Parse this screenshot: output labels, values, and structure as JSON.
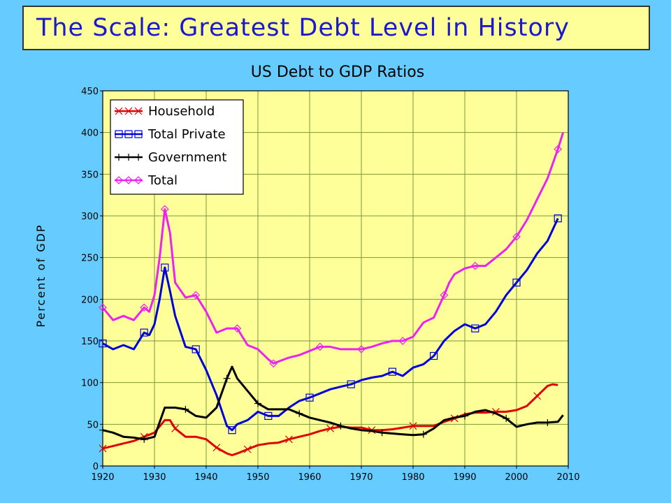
{
  "slide": {
    "title": "The Scale: Greatest Debt Level in History"
  },
  "chart_data": {
    "type": "line",
    "title": "US Debt to GDP Ratios",
    "xlabel": "",
    "ylabel": "Percent of GDP",
    "xlim": [
      1920,
      2010
    ],
    "ylim": [
      0,
      450
    ],
    "xticks": [
      1920,
      1930,
      1940,
      1950,
      1960,
      1970,
      1980,
      1990,
      2000,
      2010
    ],
    "yticks": [
      0,
      50,
      100,
      150,
      200,
      250,
      300,
      350,
      400,
      450
    ],
    "grid": true,
    "legend_position": "top-left",
    "background": "#ffff99",
    "series": [
      {
        "name": "Household",
        "color": "#e00000",
        "marker": "x",
        "x": [
          1920,
          1922,
          1924,
          1926,
          1928,
          1930,
          1932,
          1933,
          1934,
          1936,
          1938,
          1940,
          1942,
          1944,
          1945,
          1946,
          1948,
          1950,
          1952,
          1954,
          1956,
          1958,
          1960,
          1962,
          1964,
          1966,
          1968,
          1970,
          1972,
          1974,
          1976,
          1978,
          1980,
          1982,
          1984,
          1986,
          1988,
          1990,
          1992,
          1994,
          1996,
          1998,
          2000,
          2002,
          2004,
          2006,
          2007,
          2008
        ],
        "values": [
          21,
          24,
          27,
          30,
          35,
          40,
          55,
          55,
          45,
          35,
          35,
          32,
          22,
          15,
          13,
          15,
          20,
          25,
          27,
          28,
          32,
          35,
          38,
          42,
          45,
          47,
          46,
          46,
          43,
          43,
          44,
          46,
          48,
          48,
          48,
          53,
          57,
          62,
          64,
          64,
          65,
          65,
          67,
          72,
          84,
          96,
          98,
          97
        ]
      },
      {
        "name": "Total Private",
        "color": "#0000dd",
        "marker": "square",
        "x": [
          1920,
          1922,
          1924,
          1926,
          1928,
          1929,
          1930,
          1931,
          1932,
          1933,
          1934,
          1936,
          1938,
          1940,
          1942,
          1944,
          1945,
          1946,
          1948,
          1950,
          1952,
          1954,
          1956,
          1958,
          1960,
          1962,
          1964,
          1966,
          1968,
          1970,
          1972,
          1974,
          1976,
          1978,
          1980,
          1982,
          1984,
          1986,
          1988,
          1990,
          1992,
          1994,
          1996,
          1998,
          2000,
          2002,
          2004,
          2006,
          2008
        ],
        "values": [
          147,
          140,
          145,
          140,
          160,
          157,
          170,
          200,
          238,
          210,
          180,
          143,
          140,
          115,
          85,
          48,
          43,
          50,
          55,
          65,
          60,
          60,
          70,
          78,
          82,
          87,
          92,
          95,
          98,
          103,
          106,
          108,
          113,
          108,
          118,
          122,
          132,
          150,
          162,
          170,
          165,
          170,
          185,
          205,
          220,
          235,
          255,
          270,
          297
        ]
      },
      {
        "name": "Government",
        "color": "#000000",
        "marker": "plus",
        "x": [
          1920,
          1922,
          1924,
          1926,
          1928,
          1930,
          1932,
          1934,
          1936,
          1938,
          1940,
          1942,
          1944,
          1945,
          1946,
          1948,
          1950,
          1952,
          1954,
          1956,
          1958,
          1960,
          1962,
          1964,
          1966,
          1968,
          1970,
          1972,
          1974,
          1976,
          1978,
          1980,
          1982,
          1984,
          1986,
          1988,
          1990,
          1992,
          1994,
          1996,
          1998,
          2000,
          2002,
          2004,
          2006,
          2008,
          2009
        ],
        "values": [
          43,
          40,
          35,
          34,
          32,
          35,
          70,
          70,
          68,
          60,
          58,
          70,
          105,
          119,
          105,
          90,
          75,
          68,
          68,
          68,
          63,
          58,
          55,
          52,
          48,
          45,
          43,
          42,
          40,
          39,
          38,
          37,
          38,
          45,
          55,
          58,
          60,
          65,
          67,
          63,
          57,
          47,
          50,
          52,
          52,
          53,
          61
        ]
      },
      {
        "name": "Total",
        "color": "#ee22ee",
        "marker": "diamond",
        "x": [
          1920,
          1922,
          1924,
          1926,
          1928,
          1929,
          1930,
          1931,
          1932,
          1933,
          1934,
          1936,
          1938,
          1940,
          1942,
          1944,
          1946,
          1948,
          1950,
          1952,
          1953,
          1956,
          1958,
          1960,
          1962,
          1964,
          1966,
          1968,
          1970,
          1972,
          1974,
          1976,
          1978,
          1980,
          1982,
          1984,
          1986,
          1987,
          1988,
          1990,
          1992,
          1994,
          1996,
          1998,
          2000,
          2002,
          2004,
          2006,
          2008,
          2009
        ],
        "values": [
          190,
          175,
          180,
          175,
          190,
          185,
          205,
          250,
          308,
          280,
          220,
          202,
          205,
          185,
          160,
          165,
          165,
          145,
          140,
          128,
          123,
          130,
          133,
          138,
          143,
          143,
          140,
          140,
          140,
          143,
          147,
          150,
          150,
          155,
          172,
          178,
          205,
          220,
          230,
          237,
          240,
          240,
          250,
          260,
          275,
          295,
          320,
          345,
          380,
          400
        ]
      }
    ]
  }
}
